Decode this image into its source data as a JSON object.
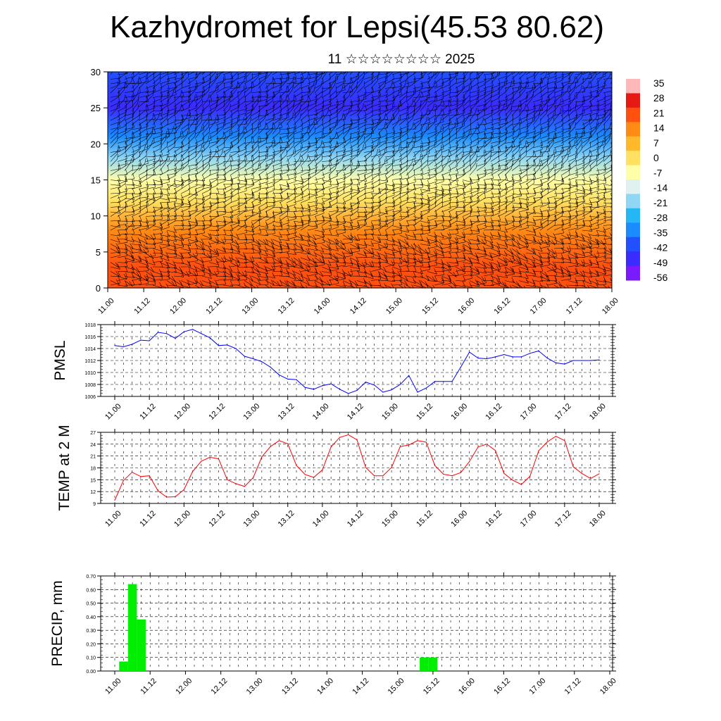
{
  "header": {
    "title": "Kazhydromet for Lepsi(45.53 80.62)",
    "subtitle": "11 ☆☆☆☆☆☆☆☆ 2025"
  },
  "time_ticks": [
    "11.00",
    "11.12",
    "12.00",
    "12.12",
    "13.00",
    "13.12",
    "14.00",
    "14.12",
    "15.00",
    "15.12",
    "16.00",
    "16.12",
    "17.00",
    "17.12",
    "18.00"
  ],
  "colors": {
    "pmsl": "#0000ff",
    "temp": "#ff0000",
    "precip": "#00ee00"
  },
  "chart_data": [
    {
      "type": "heatmap",
      "name": "temperature-wind cross-section",
      "x_labels": [
        "11.00",
        "11.12",
        "12.00",
        "12.12",
        "13.00",
        "13.12",
        "14.00",
        "14.12",
        "15.00",
        "15.12",
        "16.00",
        "16.12",
        "17.00",
        "17.12",
        "18.00"
      ],
      "ylim": [
        0,
        30
      ],
      "yticks": [
        0,
        5,
        10,
        15,
        20,
        25,
        30
      ],
      "color_levels": [
        35,
        28,
        21,
        14,
        7,
        0,
        -7,
        -14,
        -21,
        -28,
        -35,
        -42,
        -49,
        -56
      ],
      "colorbar_labels": [
        "35",
        "28",
        "21",
        "14",
        "7",
        "0",
        "-7",
        "-14",
        "-21",
        "-28",
        "-35",
        "-42",
        "-49",
        "-56"
      ],
      "approx_temperature_by_height": [
        {
          "height": 0,
          "value": 24
        },
        {
          "height": 3,
          "value": 20
        },
        {
          "height": 8,
          "value": 12
        },
        {
          "height": 12,
          "value": 3
        },
        {
          "height": 15,
          "value": -8
        },
        {
          "height": 18,
          "value": -22
        },
        {
          "height": 21,
          "value": -35
        },
        {
          "height": 25,
          "value": -52
        },
        {
          "height": 30,
          "value": -42
        }
      ]
    },
    {
      "type": "line",
      "ylabel": "PMSL",
      "ylim": [
        1006,
        1018
      ],
      "yticks": [
        1006,
        1008,
        1010,
        1012,
        1014,
        1016,
        1018
      ],
      "series": [
        {
          "values": [
            1014.5,
            1014.3,
            1014.7,
            1015.4,
            1015.3,
            1016.7,
            1016.5,
            1015.7,
            1016.8,
            1017.2,
            1016.5,
            1015.8,
            1014.5,
            1014.6,
            1014.0,
            1012.7,
            1012.3,
            1011.8,
            1010.9,
            1009.6,
            1008.9,
            1008.8,
            1007.5,
            1007.2,
            1007.8,
            1008.1,
            1007.2,
            1006.5,
            1007.0,
            1008.4,
            1007.9,
            1006.7,
            1007.1,
            1008.0,
            1009.5,
            1006.7,
            1007.4,
            1008.5,
            1008.5,
            1008.5,
            1010.9,
            1013.4,
            1012.4,
            1012.3,
            1012.6,
            1013.0,
            1012.6,
            1012.6,
            1013.2,
            1013.6,
            1012.4,
            1011.6,
            1011.4,
            1012.0,
            1012.0,
            1012.0,
            1012.1
          ]
        }
      ]
    },
    {
      "type": "line",
      "ylabel": "TEMP at 2 M",
      "ylim": [
        9,
        27
      ],
      "yticks": [
        9,
        12,
        15,
        18,
        21,
        24,
        27
      ],
      "series": [
        {
          "values": [
            9.8,
            14.8,
            16.9,
            15.8,
            16.0,
            12.2,
            10.6,
            10.7,
            12.5,
            17.1,
            19.7,
            20.7,
            20.3,
            15.0,
            14.0,
            13.3,
            15.5,
            20.8,
            23.4,
            24.9,
            24.1,
            18.6,
            16.3,
            15.6,
            17.5,
            23.3,
            25.7,
            26.4,
            25.1,
            18.1,
            16.0,
            16.0,
            18.1,
            23.4,
            23.8,
            24.9,
            24.5,
            18.6,
            16.4,
            16.0,
            16.8,
            19.6,
            23.3,
            24.0,
            22.4,
            16.6,
            14.9,
            13.8,
            15.9,
            22.3,
            24.6,
            26.0,
            24.9,
            18.3,
            16.6,
            15.3,
            16.5
          ]
        }
      ]
    },
    {
      "type": "bar",
      "ylabel": "PRECIP, mm",
      "ylim": [
        0,
        0.7
      ],
      "yticks": [
        "0.00",
        "0.10",
        "0.20",
        "0.30",
        "0.40",
        "0.50",
        "0.60",
        "0.70"
      ],
      "bars": [
        {
          "step": 1,
          "value": 0.07
        },
        {
          "step": 2,
          "value": 0.64
        },
        {
          "step": 3,
          "value": 0.38
        },
        {
          "step": 35,
          "value": 0.1
        },
        {
          "step": 36,
          "value": 0.1
        }
      ]
    }
  ]
}
